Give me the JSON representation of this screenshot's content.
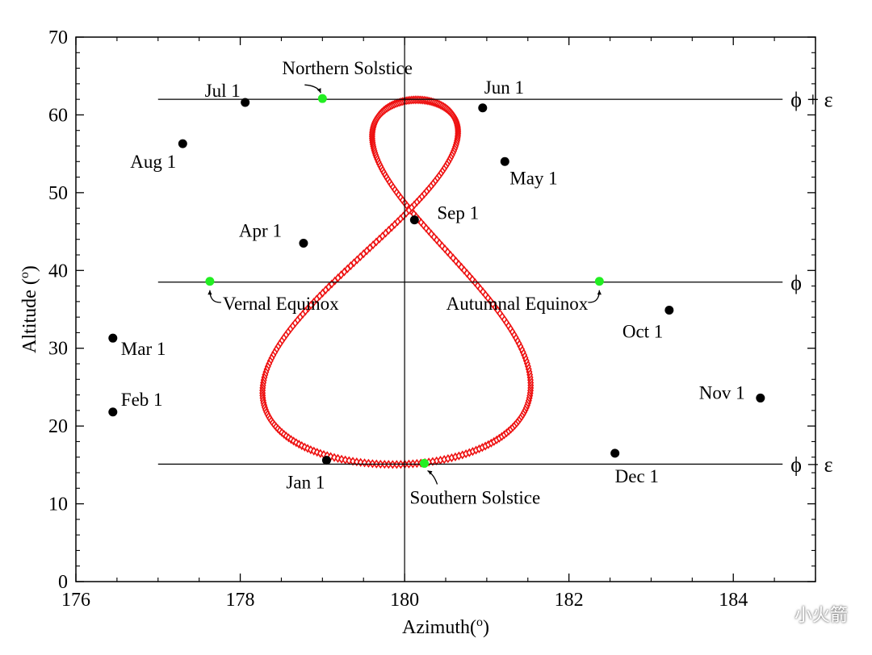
{
  "chart_data": {
    "type": "scatter",
    "title": "",
    "xlabel": "Azimuth(",
    "xlabel_sup": "o",
    "xlabel_end": ")",
    "ylabel": "Altitude (",
    "ylabel_sup": "o",
    "ylabel_end": ")",
    "xlim": [
      176,
      185
    ],
    "ylim": [
      0,
      70
    ],
    "xticks": [
      "176",
      "178",
      "180",
      "182",
      "184"
    ],
    "yticks": [
      "0",
      "10",
      "20",
      "30",
      "40",
      "50",
      "60",
      "70"
    ],
    "grid": false,
    "analemma": {
      "latitude": 38.5,
      "obliquity": 23.44,
      "eccentricity": 0.0167,
      "azimuth_center": 180.0,
      "azimuth_scale": 0.1051,
      "marker_color": "#ee1111"
    },
    "reference_lines": [
      {
        "y": 62.0,
        "x_from": 177.0,
        "x_to": 184.6,
        "label": "ϕ + ε"
      },
      {
        "y": 38.5,
        "x_from": 177.0,
        "x_to": 184.6,
        "label": "ϕ"
      },
      {
        "y": 15.1,
        "x_from": 177.0,
        "x_to": 184.6,
        "label": "ϕ − ε"
      }
    ],
    "vertical_line": {
      "x": 180.0
    },
    "month_points": [
      {
        "label": "Jan 1",
        "x": 179.05,
        "y": 15.6
      },
      {
        "label": "Feb 1",
        "x": 176.45,
        "y": 21.8
      },
      {
        "label": "Mar 1",
        "x": 176.45,
        "y": 31.3
      },
      {
        "label": "Apr 1",
        "x": 178.77,
        "y": 43.5
      },
      {
        "label": "May 1",
        "x": 181.22,
        "y": 54.0
      },
      {
        "label": "Jun 1",
        "x": 180.95,
        "y": 60.9
      },
      {
        "label": "Jul 1",
        "x": 178.06,
        "y": 61.6
      },
      {
        "label": "Aug 1",
        "x": 177.3,
        "y": 56.3
      },
      {
        "label": "Sep 1",
        "x": 180.12,
        "y": 46.5
      },
      {
        "label": "Oct 1",
        "x": 183.22,
        "y": 34.9
      },
      {
        "label": "Nov 1",
        "x": 184.33,
        "y": 23.6
      },
      {
        "label": "Dec 1",
        "x": 182.56,
        "y": 16.5
      }
    ],
    "special_points": [
      {
        "label": "Northern Solstice",
        "x": 179.0,
        "y": 62.1
      },
      {
        "label": "Vernal Equinox",
        "x": 177.63,
        "y": 38.6
      },
      {
        "label": "Autumnal Equinox",
        "x": 182.37,
        "y": 38.6
      },
      {
        "label": "Southern Solstice",
        "x": 180.24,
        "y": 15.2
      }
    ],
    "colors": {
      "curve": "#ee1111",
      "month_dot": "#000000",
      "special_dot": "#22ee22"
    }
  },
  "watermark": {
    "text": "小火箭",
    "icon": "wechat-icon"
  }
}
